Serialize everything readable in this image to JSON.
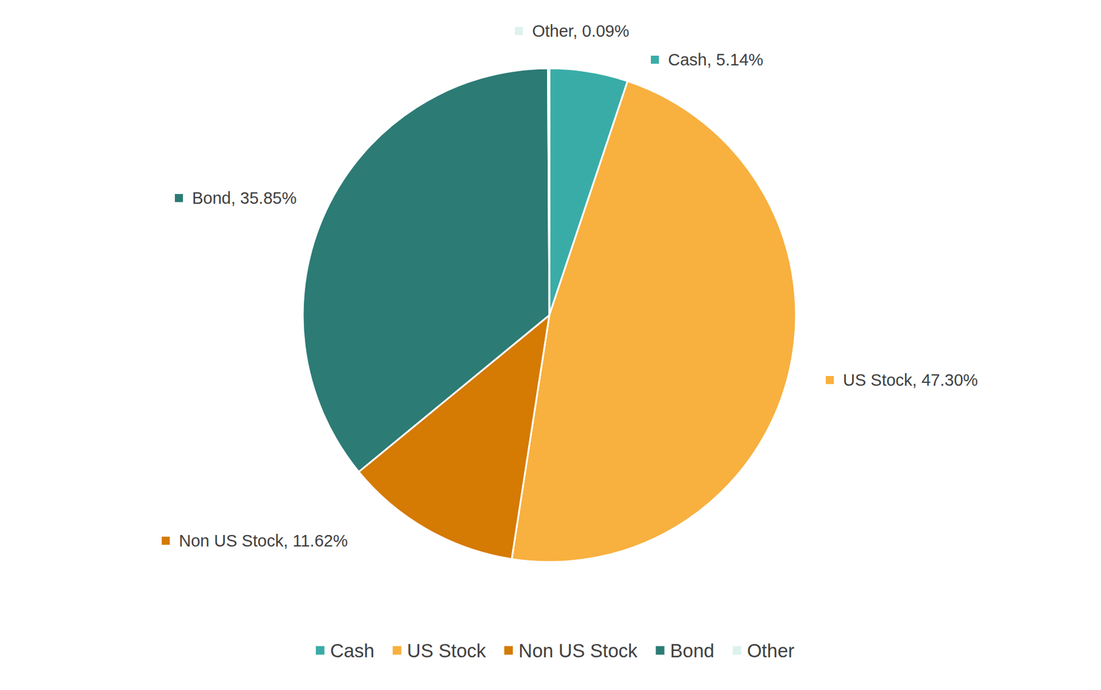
{
  "chart_data": {
    "type": "pie",
    "categories": [
      "Cash",
      "US Stock",
      "Non US Stock",
      "Bond",
      "Other"
    ],
    "values": [
      5.14,
      47.3,
      11.62,
      35.85,
      0.09
    ],
    "value_labels": [
      "Cash, 5.14%",
      "US Stock, 47.30%",
      "Non US Stock, 11.62%",
      "Bond, 35.85%",
      "Other, 0.09%"
    ],
    "colors": [
      "#3aaca7",
      "#f8b03f",
      "#d57a02",
      "#2c7b75",
      "#dcf2ee"
    ],
    "data_labels": true,
    "legend": "bottom"
  }
}
